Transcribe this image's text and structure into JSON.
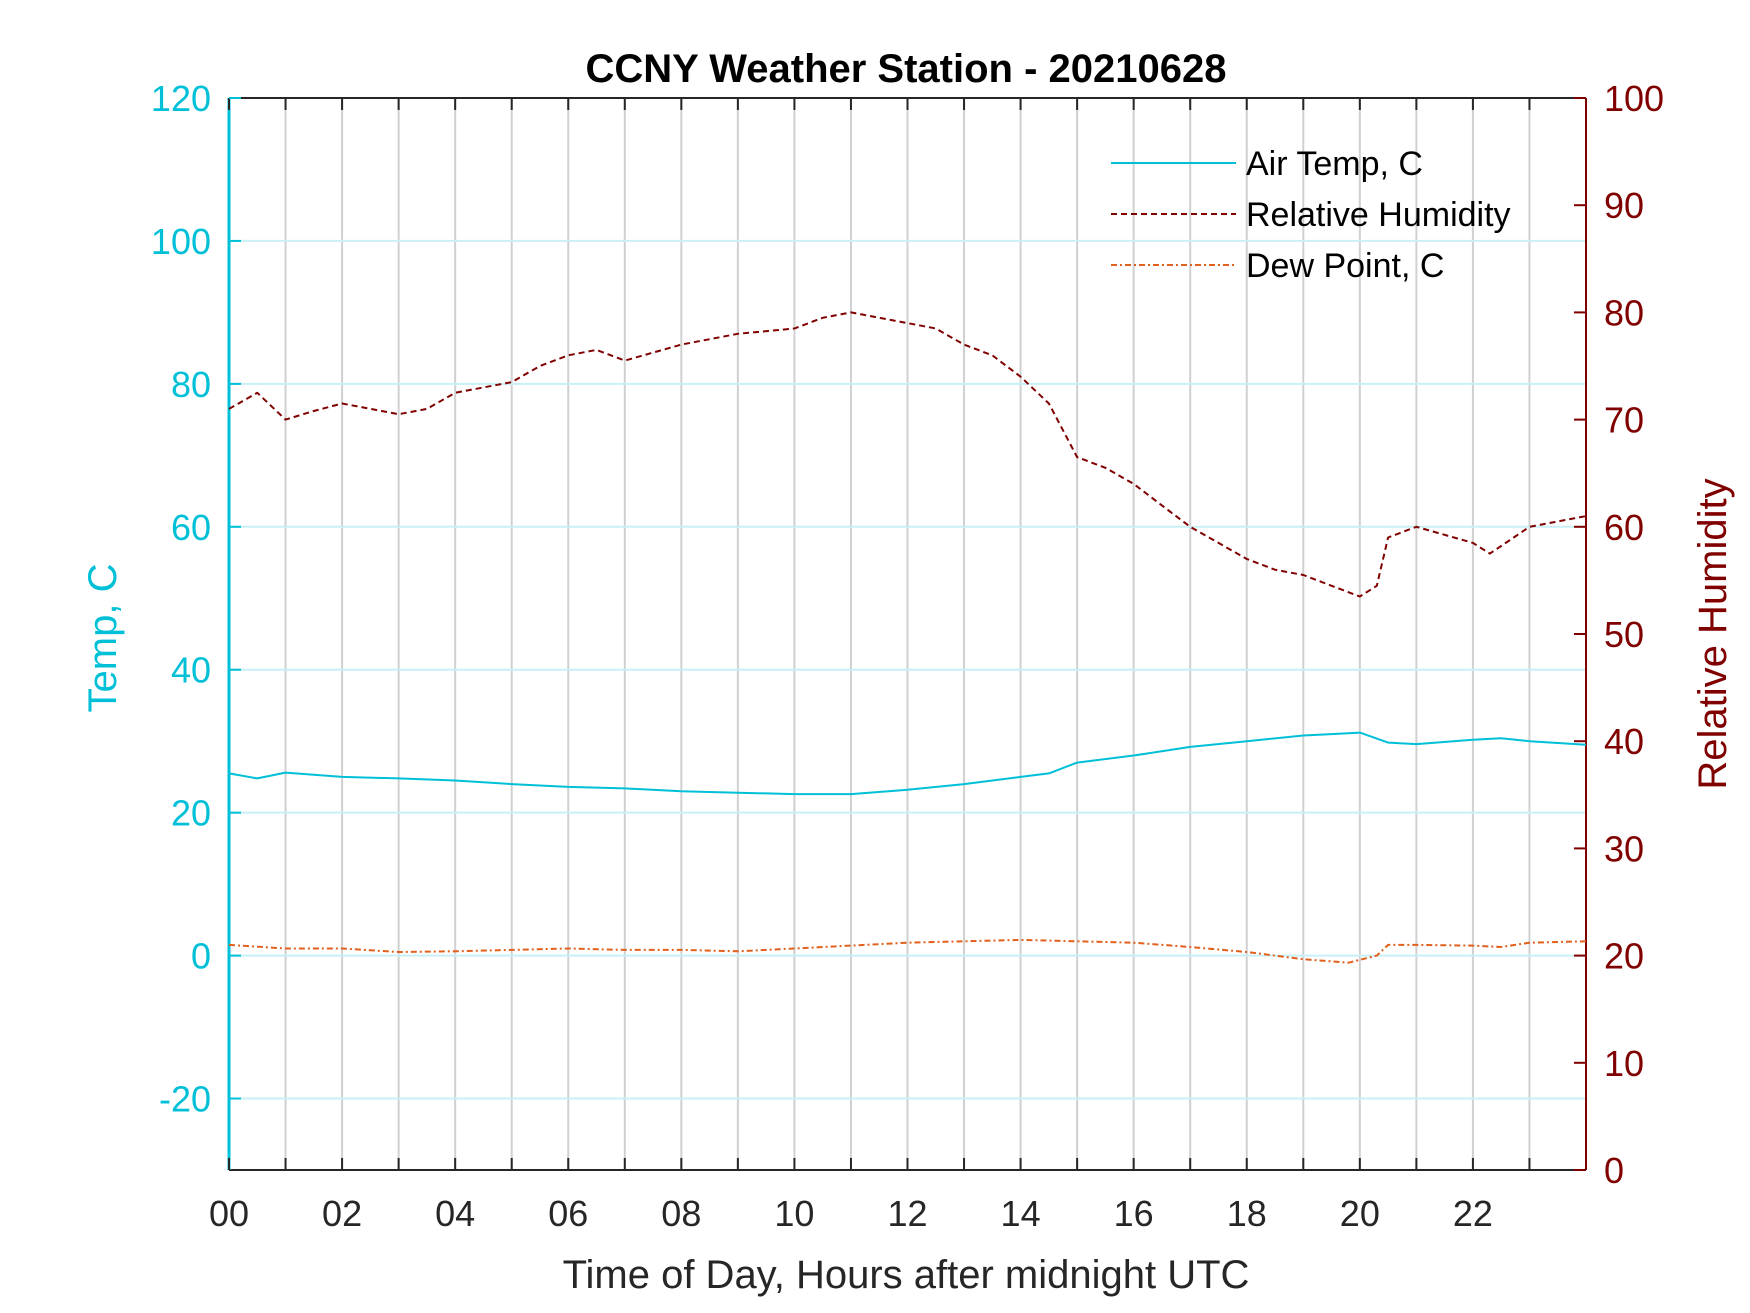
{
  "chart_data": {
    "type": "line",
    "title": "CCNY Weather Station - 20210628",
    "xlabel": "Time of Day, Hours after midnight UTC",
    "ylabel_left": "Temp, C",
    "ylabel_right": "Relative Humidity",
    "xlim": [
      0,
      24
    ],
    "ylim_left": [
      -30,
      120
    ],
    "ylim_right": [
      0,
      100
    ],
    "x_ticks": [
      0,
      2,
      4,
      6,
      8,
      10,
      12,
      14,
      16,
      18,
      20,
      22
    ],
    "x_tick_labels": [
      "00",
      "02",
      "04",
      "06",
      "08",
      "10",
      "12",
      "14",
      "16",
      "18",
      "20",
      "22"
    ],
    "y_left_ticks": [
      -20,
      0,
      20,
      40,
      60,
      80,
      100,
      120
    ],
    "y_left_tick_labels": [
      "-20",
      "0",
      "20",
      "40",
      "60",
      "80",
      "100",
      "120"
    ],
    "y_right_ticks": [
      0,
      10,
      20,
      30,
      40,
      50,
      60,
      70,
      80,
      90,
      100
    ],
    "y_right_tick_labels": [
      "0",
      "10",
      "20",
      "30",
      "40",
      "50",
      "60",
      "70",
      "80",
      "90",
      "100"
    ],
    "grid": true,
    "legend_position": "top-right",
    "colors": {
      "left_axis": "#00c0d8",
      "right_axis": "#800000",
      "air_temp": "#00c0d8",
      "humidity": "#800000",
      "dew_point": "#e0601c",
      "grid_vertical": "#d0d0d0",
      "grid_horizontal": "#c8f0f6"
    },
    "series": [
      {
        "name": "Air Temp, C",
        "axis": "left",
        "style": "solid",
        "x": [
          0,
          0.5,
          1,
          2,
          3,
          4,
          5,
          6,
          7,
          8,
          9,
          10,
          11,
          12,
          13,
          14,
          14.5,
          15,
          16,
          17,
          18,
          19,
          19.5,
          20,
          20.5,
          21,
          22,
          22.5,
          23,
          24
        ],
        "y": [
          25.5,
          24.8,
          25.6,
          25.0,
          24.8,
          24.5,
          24.0,
          23.6,
          23.4,
          23.0,
          22.8,
          22.6,
          22.6,
          23.2,
          24.0,
          25.0,
          25.5,
          27.0,
          28.0,
          29.2,
          30.0,
          30.8,
          31.0,
          31.2,
          29.8,
          29.6,
          30.2,
          30.4,
          30.0,
          29.5
        ]
      },
      {
        "name": "Relative Humidity",
        "axis": "right",
        "style": "dashed",
        "x": [
          0,
          0.5,
          1,
          1.5,
          2,
          3,
          3.5,
          4,
          5,
          5.5,
          6,
          6.5,
          7,
          8,
          9,
          10,
          10.5,
          11,
          12,
          12.5,
          13,
          13.5,
          14,
          14.5,
          15,
          15.5,
          16,
          16.5,
          17,
          17.5,
          18,
          18.5,
          19,
          19.5,
          20,
          20.3,
          20.5,
          21,
          22,
          22.3,
          23,
          24
        ],
        "y": [
          71,
          72.5,
          70,
          70.8,
          71.5,
          70.5,
          71,
          72.5,
          73.5,
          75,
          76,
          76.5,
          75.5,
          77,
          78,
          78.5,
          79.5,
          80,
          79,
          78.5,
          77,
          76,
          74,
          71.5,
          66.5,
          65.5,
          64,
          62,
          60,
          58.5,
          57,
          56,
          55.5,
          54.5,
          53.5,
          54.5,
          59,
          60,
          58.5,
          57.5,
          60,
          61
        ]
      },
      {
        "name": "Dew Point, C",
        "axis": "left",
        "style": "dash-dot",
        "x": [
          0,
          1,
          2,
          3,
          4,
          5,
          6,
          7,
          8,
          9,
          10,
          11,
          12,
          13,
          14,
          15,
          16,
          17,
          18,
          19,
          19.8,
          20.3,
          20.5,
          21,
          22,
          22.5,
          23,
          24
        ],
        "y": [
          1.5,
          1.0,
          1.0,
          0.5,
          0.6,
          0.8,
          1.0,
          0.8,
          0.8,
          0.6,
          1.0,
          1.4,
          1.8,
          2.0,
          2.2,
          2.0,
          1.8,
          1.2,
          0.5,
          -0.5,
          -1.0,
          0.0,
          1.5,
          1.5,
          1.4,
          1.2,
          1.8,
          2.0
        ]
      }
    ]
  }
}
